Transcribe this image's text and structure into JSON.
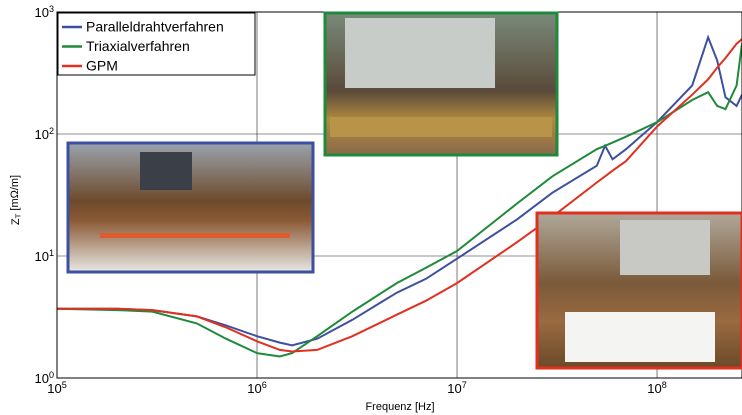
{
  "chart_data": {
    "type": "line",
    "x_label": "Frequenz [Hz]",
    "y_label": "Z_T [mΩ/m]",
    "log_x": true,
    "log_y": true,
    "grid": true,
    "legend": "upper left",
    "xlim": [
      100000,
      266000000
    ],
    "ylim": [
      1,
      1000
    ],
    "xticks": [
      {
        "value": 100000,
        "label": "10^5"
      },
      {
        "value": 1000000,
        "label": "10^6"
      },
      {
        "value": 10000000,
        "label": "10^7"
      },
      {
        "value": 100000000,
        "label": "10^8"
      }
    ],
    "yticks": [
      {
        "value": 1,
        "label": "10^0"
      },
      {
        "value": 10,
        "label": "10^1"
      },
      {
        "value": 100,
        "label": "10^2"
      },
      {
        "value": 1000,
        "label": "10^3"
      }
    ],
    "x": [
      100000,
      200000,
      300000,
      500000,
      700000,
      1000000,
      1300000,
      1500000,
      2000000,
      3000000,
      5000000,
      7000000,
      10000000,
      20000000,
      30000000,
      50000000,
      55000000,
      60000000,
      70000000,
      100000000,
      150000000,
      180000000,
      200000000,
      220000000,
      250000000,
      266000000
    ],
    "series": [
      {
        "name": "Paralleldrahtverfahren",
        "color": "#3d4fa0",
        "values": [
          3.7,
          3.7,
          3.6,
          3.2,
          2.7,
          2.2,
          1.95,
          1.85,
          2.1,
          3.0,
          5.0,
          6.5,
          9.5,
          20,
          33,
          55,
          80,
          62,
          75,
          125,
          250,
          620,
          400,
          200,
          170,
          210
        ]
      },
      {
        "name": "Triaxialverfahren",
        "color": "#1e8a3a",
        "values": [
          3.7,
          3.6,
          3.5,
          2.8,
          2.1,
          1.6,
          1.5,
          1.6,
          2.2,
          3.5,
          6,
          8,
          11,
          27,
          45,
          75,
          80,
          85,
          95,
          125,
          190,
          220,
          170,
          160,
          250,
          550
        ]
      },
      {
        "name": "GPM",
        "color": "#e03020",
        "values": [
          3.7,
          3.7,
          3.6,
          3.2,
          2.6,
          2.0,
          1.7,
          1.65,
          1.7,
          2.2,
          3.3,
          4.3,
          6,
          13,
          21,
          40,
          45,
          50,
          60,
          115,
          210,
          280,
          350,
          420,
          550,
          600
        ]
      }
    ]
  }
}
